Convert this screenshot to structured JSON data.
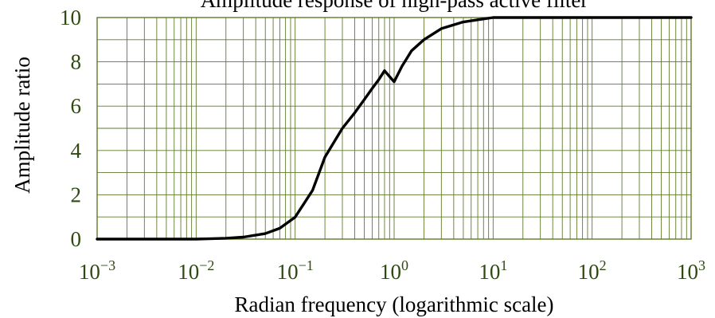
{
  "chart_data": {
    "type": "line",
    "title": "Amplitude response of high-pass active filter",
    "xlabel": "Radian frequency (logarithmic scale)",
    "ylabel": "Amplitude ratio",
    "xscale": "log",
    "xlim": [
      0.001,
      1000
    ],
    "ylim": [
      0,
      10
    ],
    "grid": true,
    "legend": "none",
    "x_ticks": [
      {
        "base": "10",
        "exp": "−3",
        "value": 0.001
      },
      {
        "base": "10",
        "exp": "−2",
        "value": 0.01
      },
      {
        "base": "10",
        "exp": "−1",
        "value": 0.1
      },
      {
        "base": "10",
        "exp": "0",
        "value": 1
      },
      {
        "base": "10",
        "exp": "1",
        "value": 10
      },
      {
        "base": "10",
        "exp": "2",
        "value": 100
      },
      {
        "base": "10",
        "exp": "3",
        "value": 1000
      }
    ],
    "y_ticks": [
      "0",
      "2",
      "4",
      "6",
      "8",
      "10"
    ],
    "series": [
      {
        "color": "#000000",
        "x": [
          0.001,
          0.003,
          0.01,
          0.02,
          0.03,
          0.05,
          0.07,
          0.1,
          0.15,
          0.2,
          0.3,
          0.4,
          0.5,
          0.6,
          0.7,
          0.8,
          1.0,
          1.2,
          1.5,
          2,
          3,
          5,
          7,
          10,
          20,
          50,
          100,
          1000
        ],
        "y": [
          0,
          0,
          0,
          0.04,
          0.09,
          0.25,
          0.49,
          0.99,
          2.2,
          3.7,
          5.0,
          5.7,
          6.3,
          6.8,
          7.2,
          7.6,
          7.1,
          7.8,
          8.5,
          9.0,
          9.5,
          9.8,
          9.9,
          10,
          10,
          10,
          10,
          10
        ]
      }
    ],
    "colors": {
      "grid": "#5f7a2c",
      "tick_text": "#2f4a10",
      "curve": "#000000"
    }
  }
}
